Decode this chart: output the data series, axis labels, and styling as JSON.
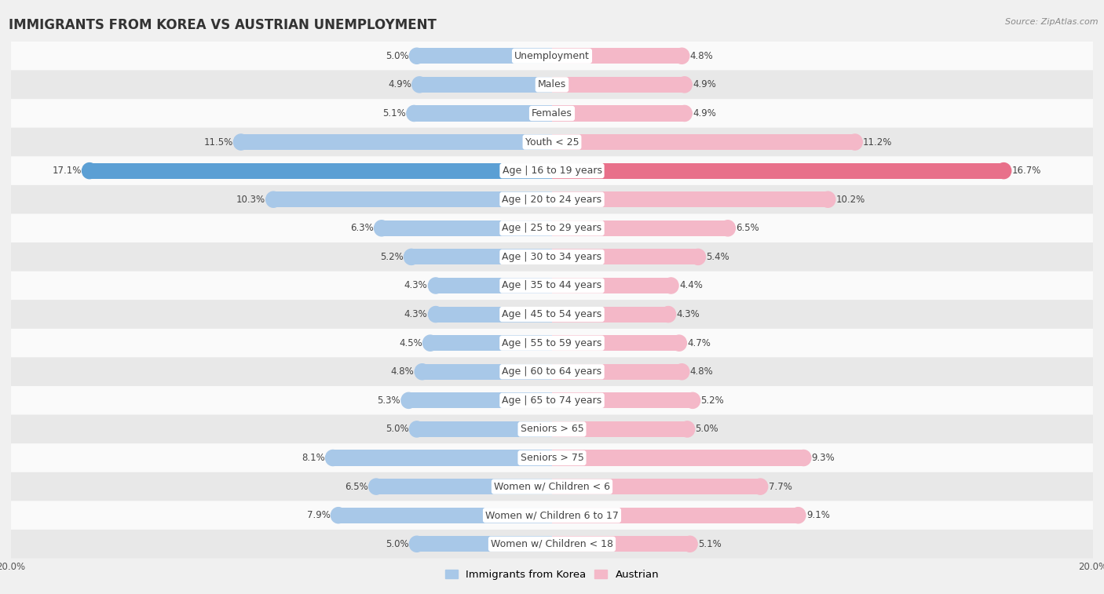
{
  "title": "IMMIGRANTS FROM KOREA VS AUSTRIAN UNEMPLOYMENT",
  "source": "Source: ZipAtlas.com",
  "categories": [
    "Unemployment",
    "Males",
    "Females",
    "Youth < 25",
    "Age | 16 to 19 years",
    "Age | 20 to 24 years",
    "Age | 25 to 29 years",
    "Age | 30 to 34 years",
    "Age | 35 to 44 years",
    "Age | 45 to 54 years",
    "Age | 55 to 59 years",
    "Age | 60 to 64 years",
    "Age | 65 to 74 years",
    "Seniors > 65",
    "Seniors > 75",
    "Women w/ Children < 6",
    "Women w/ Children 6 to 17",
    "Women w/ Children < 18"
  ],
  "korea_values": [
    5.0,
    4.9,
    5.1,
    11.5,
    17.1,
    10.3,
    6.3,
    5.2,
    4.3,
    4.3,
    4.5,
    4.8,
    5.3,
    5.0,
    8.1,
    6.5,
    7.9,
    5.0
  ],
  "austria_values": [
    4.8,
    4.9,
    4.9,
    11.2,
    16.7,
    10.2,
    6.5,
    5.4,
    4.4,
    4.3,
    4.7,
    4.8,
    5.2,
    5.0,
    9.3,
    7.7,
    9.1,
    5.1
  ],
  "korea_color": "#a8c8e8",
  "austria_color": "#f4b8c8",
  "korea_highlight_color": "#5b9fd4",
  "austria_highlight_color": "#e8708a",
  "highlight_rows": [
    4
  ],
  "max_value": 20.0,
  "background_color": "#f0f0f0",
  "row_bg_light": "#fafafa",
  "row_bg_dark": "#e8e8e8",
  "legend_korea": "Immigrants from Korea",
  "legend_austria": "Austrian",
  "bar_height": 0.55,
  "title_fontsize": 12,
  "label_fontsize": 9,
  "value_fontsize": 8.5,
  "tick_fontsize": 8.5
}
